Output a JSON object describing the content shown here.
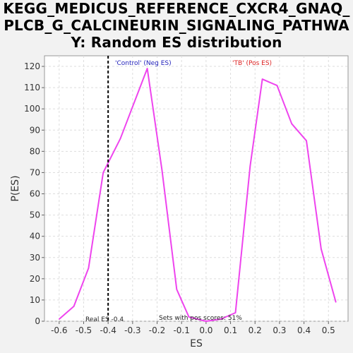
{
  "chart_data": {
    "type": "line",
    "title_lines": [
      "KEGG_MEDICUS_REFERENCE_CXCR4_GNAQ_",
      "PLCB_G_CALCINEURIN_SIGNALING_PATHWA",
      "Y: Random ES distribution"
    ],
    "xlabel": "ES",
    "ylabel": "P(ES)",
    "xlim": [
      -0.66,
      0.58
    ],
    "ylim": [
      0,
      125
    ],
    "xticks": [
      -0.6,
      -0.5,
      -0.4,
      -0.3,
      -0.2,
      -0.1,
      0.0,
      0.1,
      0.2,
      0.3,
      0.4,
      0.5
    ],
    "xtick_labels": [
      "-0.6",
      "-0.5",
      "-0.4",
      "-0.3",
      "-0.2",
      "-0.1",
      "0.0",
      "0.1",
      "0.2",
      "0.3",
      "0.4",
      "0.5"
    ],
    "yticks": [
      0,
      10,
      20,
      30,
      40,
      50,
      60,
      70,
      80,
      90,
      100,
      110,
      120
    ],
    "ytick_labels": [
      "0",
      "10",
      "20",
      "30",
      "40",
      "50",
      "60",
      "70",
      "80",
      "90",
      "100",
      "110",
      "120"
    ],
    "grid": true,
    "series": [
      {
        "color": "#ee44ee",
        "x": [
          -0.6,
          -0.54,
          -0.48,
          -0.42,
          -0.35,
          -0.3,
          -0.24,
          -0.18,
          -0.12,
          -0.07,
          0.0,
          0.06,
          0.12,
          0.18,
          0.23,
          0.29,
          0.35,
          0.41,
          0.47,
          0.53
        ],
        "y": [
          1,
          7,
          25,
          70,
          86,
          101,
          119,
          71,
          15,
          2,
          0,
          1,
          4,
          73,
          114,
          111,
          93,
          85,
          34,
          9
        ]
      }
    ],
    "real_es": -0.4,
    "annotations": {
      "real_es": "Real ES -0.4",
      "pos_scores": "Sets with pos scores: 51%",
      "neg_label": "'Control' (Neg ES)",
      "pos_label": "'TB' (Pos ES)"
    },
    "colors": {
      "line": "#ee44ee",
      "neg_label": "#2222bb",
      "pos_label": "#dd2222",
      "plot_bg": "#ffffff",
      "page_bg": "#f2f2f2"
    }
  }
}
